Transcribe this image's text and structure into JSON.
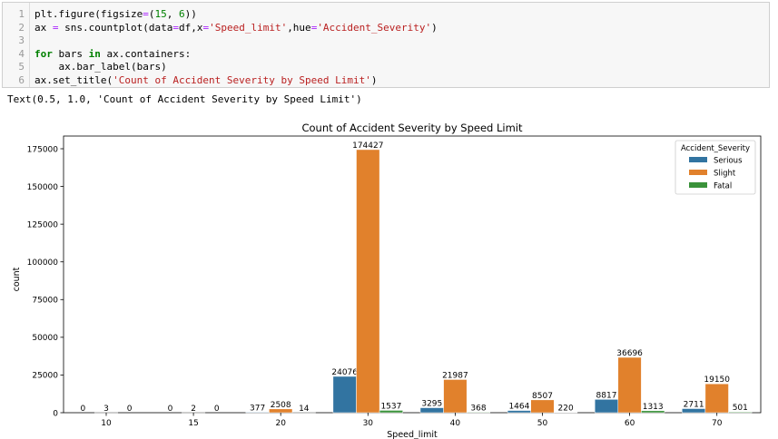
{
  "code_cell": {
    "lines": [
      {
        "num": "1",
        "segments": [
          {
            "t": "plt.figure(figsize",
            "c": ""
          },
          {
            "t": "=",
            "c": "op"
          },
          {
            "t": "(",
            "c": ""
          },
          {
            "t": "15",
            "c": "num"
          },
          {
            "t": ", ",
            "c": ""
          },
          {
            "t": "6",
            "c": "num"
          },
          {
            "t": "))",
            "c": ""
          }
        ]
      },
      {
        "num": "2",
        "segments": [
          {
            "t": "ax ",
            "c": ""
          },
          {
            "t": "=",
            "c": "op"
          },
          {
            "t": " sns.countplot(data",
            "c": ""
          },
          {
            "t": "=",
            "c": "op"
          },
          {
            "t": "df,x",
            "c": ""
          },
          {
            "t": "=",
            "c": "op"
          },
          {
            "t": "'Speed_limit'",
            "c": "str"
          },
          {
            "t": ",hue",
            "c": ""
          },
          {
            "t": "=",
            "c": "op"
          },
          {
            "t": "'Accident_Severity'",
            "c": "str"
          },
          {
            "t": ")",
            "c": ""
          }
        ]
      },
      {
        "num": "3",
        "segments": []
      },
      {
        "num": "4",
        "segments": [
          {
            "t": "for",
            "c": "kw"
          },
          {
            "t": " bars ",
            "c": ""
          },
          {
            "t": "in",
            "c": "kw"
          },
          {
            "t": " ax.containers:",
            "c": ""
          }
        ]
      },
      {
        "num": "5",
        "segments": [
          {
            "t": "    ax.bar_label(bars)",
            "c": ""
          }
        ]
      },
      {
        "num": "6",
        "segments": [
          {
            "t": "ax.set_title(",
            "c": ""
          },
          {
            "t": "'Count of Accident Severity by Speed Limit'",
            "c": "str"
          },
          {
            "t": ")",
            "c": ""
          }
        ]
      }
    ]
  },
  "output": {
    "text": "Text(0.5, 1.0, 'Count of Accident Severity by Speed Limit')"
  },
  "chart_data": {
    "type": "bar",
    "title": "Count of Accident Severity by Speed Limit",
    "xlabel": "Speed_limit",
    "ylabel": "count",
    "categories": [
      "10",
      "15",
      "20",
      "30",
      "40",
      "50",
      "60",
      "70"
    ],
    "series": [
      {
        "name": "Serious",
        "color": "#3274a1",
        "values": [
          0,
          0,
          377,
          24076,
          3295,
          1464,
          8817,
          2711
        ]
      },
      {
        "name": "Slight",
        "color": "#e1812c",
        "values": [
          3,
          2,
          2508,
          174427,
          21987,
          8507,
          36696,
          19150
        ]
      },
      {
        "name": "Fatal",
        "color": "#3a923a",
        "values": [
          0,
          0,
          14,
          1537,
          368,
          220,
          1313,
          501
        ]
      }
    ],
    "yticks": [
      0,
      25000,
      50000,
      75000,
      100000,
      125000,
      150000,
      175000
    ],
    "ylim": [
      0,
      183149
    ],
    "grid": false,
    "legend": {
      "title": "Accident_Severity",
      "position": "upper right",
      "entries": [
        "Serious",
        "Slight",
        "Fatal"
      ]
    },
    "bar_labels": true
  }
}
